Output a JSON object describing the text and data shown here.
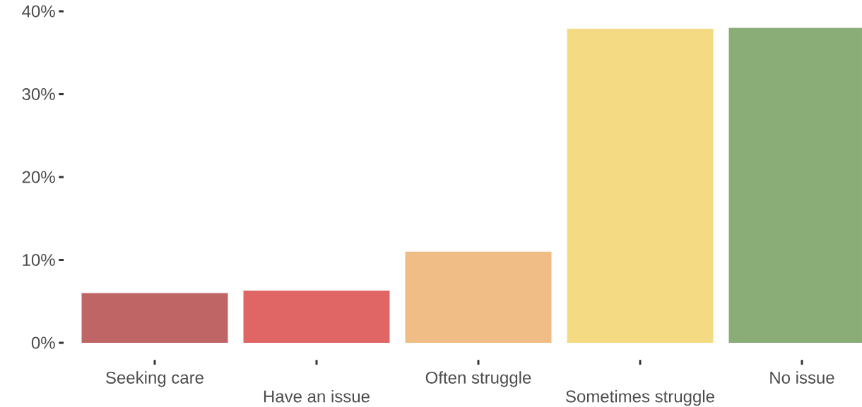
{
  "chart_data": {
    "type": "bar",
    "categories": [
      "Seeking care",
      "Have an issue",
      "Often struggle",
      "Sometimes struggle",
      "No issue"
    ],
    "values": [
      6.0,
      6.3,
      11.0,
      37.9,
      38.0
    ],
    "colors": [
      "#c06565",
      "#e06666",
      "#f0bd87",
      "#f5da84",
      "#8aac77"
    ],
    "ylim": [
      0,
      40
    ],
    "yticks": [
      {
        "value": 0,
        "label": "0%"
      },
      {
        "value": 10,
        "label": "10%"
      },
      {
        "value": 20,
        "label": "20%"
      },
      {
        "value": 30,
        "label": "30%"
      },
      {
        "value": 40,
        "label": "40%"
      }
    ]
  }
}
